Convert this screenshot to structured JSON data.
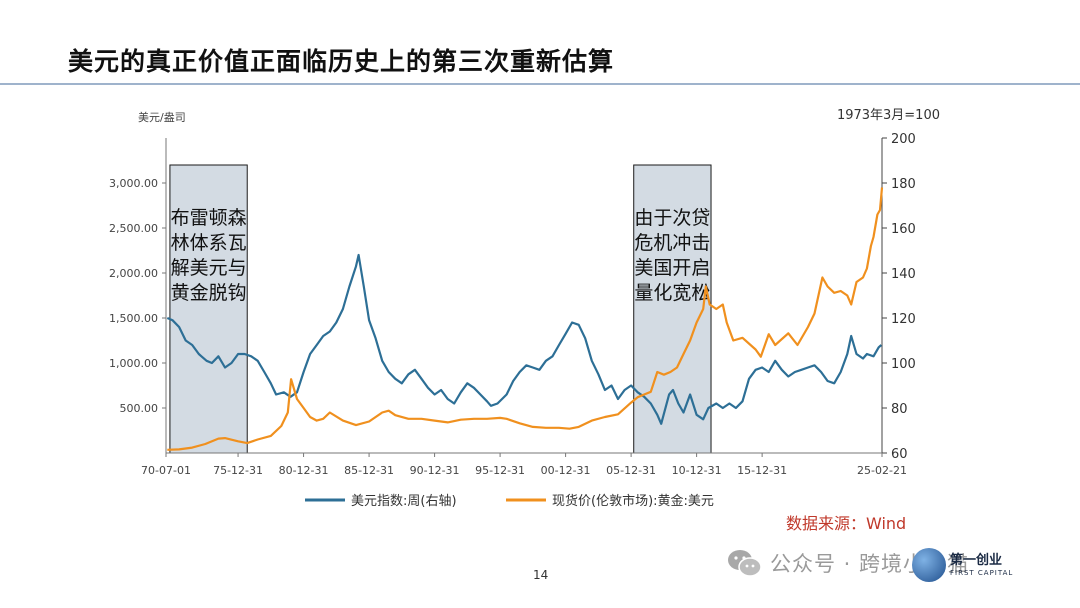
{
  "slide": {
    "title": "美元的真正价值正面临历史上的第三次重新估算",
    "page_number": "14",
    "source": "数据来源：Wind",
    "wechat_label": "公众号 · 跨境小栈猫",
    "logo_cn": "第一创业",
    "logo_en": "FIRST CAPITAL"
  },
  "colors": {
    "dollar_index": "#2d6f96",
    "gold": "#f0901e",
    "shade": "#d3dbe3",
    "axis": "#777777",
    "source": "#c0392b"
  },
  "chart_data": {
    "type": "line",
    "left_unit": "美元/盎司",
    "right_unit": "1973年3月=100",
    "x_ticks": [
      "70-07-01",
      "75-12-31",
      "80-12-31",
      "85-12-31",
      "90-12-31",
      "95-12-31",
      "00-12-31",
      "05-12-31",
      "10-12-31",
      "15-12-31",
      "25-02-21"
    ],
    "x_range": [
      1970.5,
      2025.15
    ],
    "y_left_ticks": [
      "500.00",
      "1,000.00",
      "1,500.00",
      "2,000.00",
      "2,500.00",
      "3,000.00"
    ],
    "y_left_range": [
      0,
      3500
    ],
    "y_right_ticks": [
      "60",
      "80",
      "100",
      "120",
      "140",
      "160",
      "180",
      "200"
    ],
    "y_right_range": [
      60,
      200
    ],
    "shaded_regions": [
      {
        "from": 1970.8,
        "to": 1976.7,
        "label": [
          "布雷顿森",
          "林体系瓦",
          "解美元与",
          "黄金脱钩"
        ]
      },
      {
        "from": 2006.2,
        "to": 2012.1,
        "label": [
          "由于次贷",
          "危机冲击",
          "美国开启",
          "量化宽松"
        ]
      }
    ],
    "legend_position": "bottom",
    "series": [
      {
        "name": "美元指数:周(右轴)",
        "axis": "right",
        "x": [
          1970.6,
          1971.0,
          1971.5,
          1972.0,
          1972.5,
          1973.0,
          1973.2,
          1973.6,
          1974.0,
          1974.5,
          1975.0,
          1975.5,
          1976.0,
          1976.5,
          1977.0,
          1977.5,
          1978.0,
          1978.5,
          1978.9,
          1979.5,
          1980.0,
          1980.5,
          1981.0,
          1981.5,
          1982.0,
          1982.5,
          1983.0,
          1983.5,
          1984.0,
          1984.5,
          1985.0,
          1985.2,
          1985.6,
          1986.0,
          1986.5,
          1987.0,
          1987.5,
          1988.0,
          1988.5,
          1989.0,
          1989.5,
          1990.0,
          1990.5,
          1991.0,
          1991.5,
          1992.0,
          1992.5,
          1993.0,
          1993.5,
          1994.0,
          1994.5,
          1995.0,
          1995.3,
          1995.8,
          1996.5,
          1997.0,
          1997.5,
          1998.0,
          1998.5,
          1999.0,
          1999.5,
          2000.0,
          2000.5,
          2001.0,
          2001.5,
          2002.0,
          2002.5,
          2003.0,
          2003.5,
          2004.0,
          2004.5,
          2005.0,
          2005.5,
          2006.0,
          2006.5,
          2007.0,
          2007.5,
          2008.0,
          2008.3,
          2008.9,
          2009.2,
          2009.6,
          2010.0,
          2010.5,
          2011.0,
          2011.5,
          2011.9,
          2012.5,
          2013.0,
          2013.5,
          2014.0,
          2014.5,
          2015.0,
          2015.5,
          2016.0,
          2016.5,
          2017.0,
          2017.5,
          2018.0,
          2018.5,
          2019.0,
          2019.5,
          2020.0,
          2020.5,
          2021.0,
          2021.5,
          2022.0,
          2022.5,
          2022.8,
          2023.2,
          2023.7,
          2024.0,
          2024.5,
          2024.9,
          2025.1
        ],
        "y": [
          120,
          119,
          116,
          110,
          108,
          104,
          103,
          101,
          100,
          103,
          98,
          100,
          104,
          104,
          103,
          101,
          96,
          91,
          86,
          87,
          85,
          87,
          96,
          104,
          108,
          112,
          114,
          118,
          124,
          134,
          143,
          148,
          134,
          119,
          111,
          101,
          96,
          93,
          91,
          95,
          97,
          93,
          89,
          86,
          88,
          84,
          82,
          87,
          91,
          89,
          86,
          83,
          81,
          82,
          86,
          92,
          96,
          99,
          98,
          97,
          101,
          103,
          108,
          113,
          118,
          117,
          111,
          101,
          95,
          88,
          90,
          84,
          88,
          90,
          87,
          85,
          82,
          77,
          73,
          86,
          88,
          82,
          78,
          86,
          77,
          75,
          80,
          82,
          80,
          82,
          80,
          83,
          93,
          97,
          98,
          96,
          101,
          97,
          94,
          96,
          97,
          98,
          99,
          96,
          92,
          91,
          96,
          104,
          112,
          104,
          102,
          104,
          103,
          107,
          108
        ]
      },
      {
        "name": "现货价(伦敦市场):黄金:美元",
        "axis": "left",
        "x": [
          1970.6,
          1971.5,
          1972.5,
          1973.5,
          1974.5,
          1975.0,
          1976.0,
          1976.7,
          1977.5,
          1978.5,
          1979.3,
          1979.8,
          1980.05,
          1980.5,
          1981.0,
          1981.5,
          1982.0,
          1982.5,
          1983.0,
          1984.0,
          1985.0,
          1986.0,
          1987.0,
          1987.5,
          1988.0,
          1989.0,
          1990.0,
          1991.0,
          1992.0,
          1993.0,
          1994.0,
          1995.0,
          1996.0,
          1996.5,
          1997.5,
          1998.5,
          1999.5,
          2000.5,
          2001.3,
          2002.0,
          2003.0,
          2004.0,
          2005.0,
          2006.0,
          2006.5,
          2007.0,
          2007.5,
          2008.0,
          2008.5,
          2009.0,
          2009.5,
          2010.0,
          2010.5,
          2011.0,
          2011.5,
          2011.7,
          2012.0,
          2012.5,
          2013.0,
          2013.3,
          2013.8,
          2014.5,
          2015.5,
          2015.9,
          2016.5,
          2017.0,
          2018.0,
          2018.7,
          2019.5,
          2020.0,
          2020.6,
          2021.0,
          2021.5,
          2022.0,
          2022.5,
          2022.8,
          2023.2,
          2023.7,
          2024.0,
          2024.3,
          2024.5,
          2024.8,
          2025.0,
          2025.15
        ],
        "y": [
          36,
          40,
          60,
          100,
          160,
          165,
          130,
          110,
          150,
          190,
          300,
          450,
          820,
          600,
          500,
          400,
          360,
          380,
          450,
          360,
          310,
          350,
          450,
          470,
          420,
          380,
          380,
          360,
          340,
          370,
          380,
          380,
          390,
          380,
          330,
          290,
          280,
          280,
          270,
          290,
          360,
          400,
          430,
          560,
          620,
          650,
          680,
          900,
          870,
          900,
          950,
          1100,
          1250,
          1450,
          1600,
          1850,
          1650,
          1600,
          1650,
          1450,
          1250,
          1280,
          1150,
          1070,
          1320,
          1200,
          1330,
          1200,
          1400,
          1550,
          1950,
          1850,
          1780,
          1800,
          1750,
          1650,
          1900,
          1950,
          2050,
          2300,
          2400,
          2650,
          2700,
          2950
        ]
      }
    ]
  }
}
